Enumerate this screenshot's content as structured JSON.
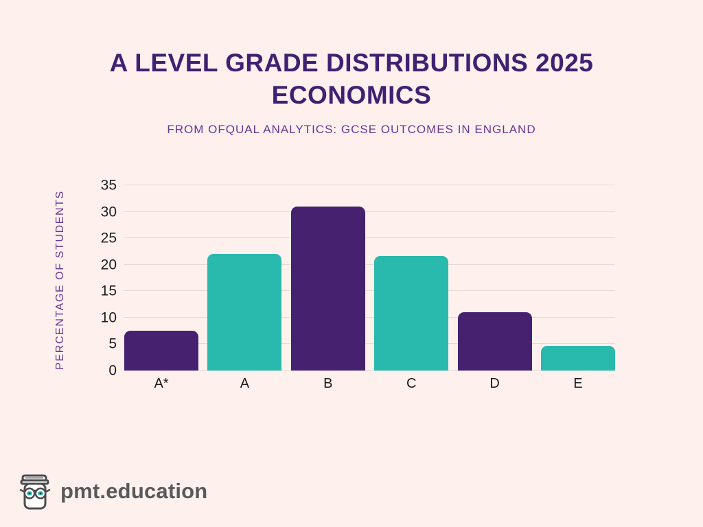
{
  "page": {
    "background": "#fdf0ed"
  },
  "header": {
    "title_line1": "A LEVEL GRADE DISTRIBUTIONS 2025",
    "title_line2": "ECONOMICS",
    "subtitle": "FROM OFQUAL ANALYTICS: GCSE OUTCOMES IN ENGLAND",
    "title_color": "#3f2173",
    "subtitle_color": "#6a3597"
  },
  "chart_data": {
    "type": "bar",
    "title": "A LEVEL GRADE DISTRIBUTIONS 2025 ECONOMICS",
    "categories": [
      "A*",
      "A",
      "B",
      "C",
      "D",
      "E"
    ],
    "values": [
      7.5,
      22,
      31,
      21.7,
      11,
      4.7
    ],
    "xlabel": "",
    "ylabel": "PERCENTAGE OF STUDENTS",
    "ylim": [
      0,
      35
    ],
    "ytick_step": 5,
    "grid": true,
    "legend": false,
    "bar_colors_alternating": [
      "#45216f",
      "#29b9ad"
    ],
    "gridline_color": "#e5dad6",
    "tick_color": "#1e1e1e"
  },
  "footer": {
    "brand": "pmt.education",
    "brand_color": "#58595b",
    "logo_icon": "book-with-glasses-icon",
    "logo_outline_color": "#4c4c4e",
    "logo_eye_color": "#2cbcb0"
  }
}
